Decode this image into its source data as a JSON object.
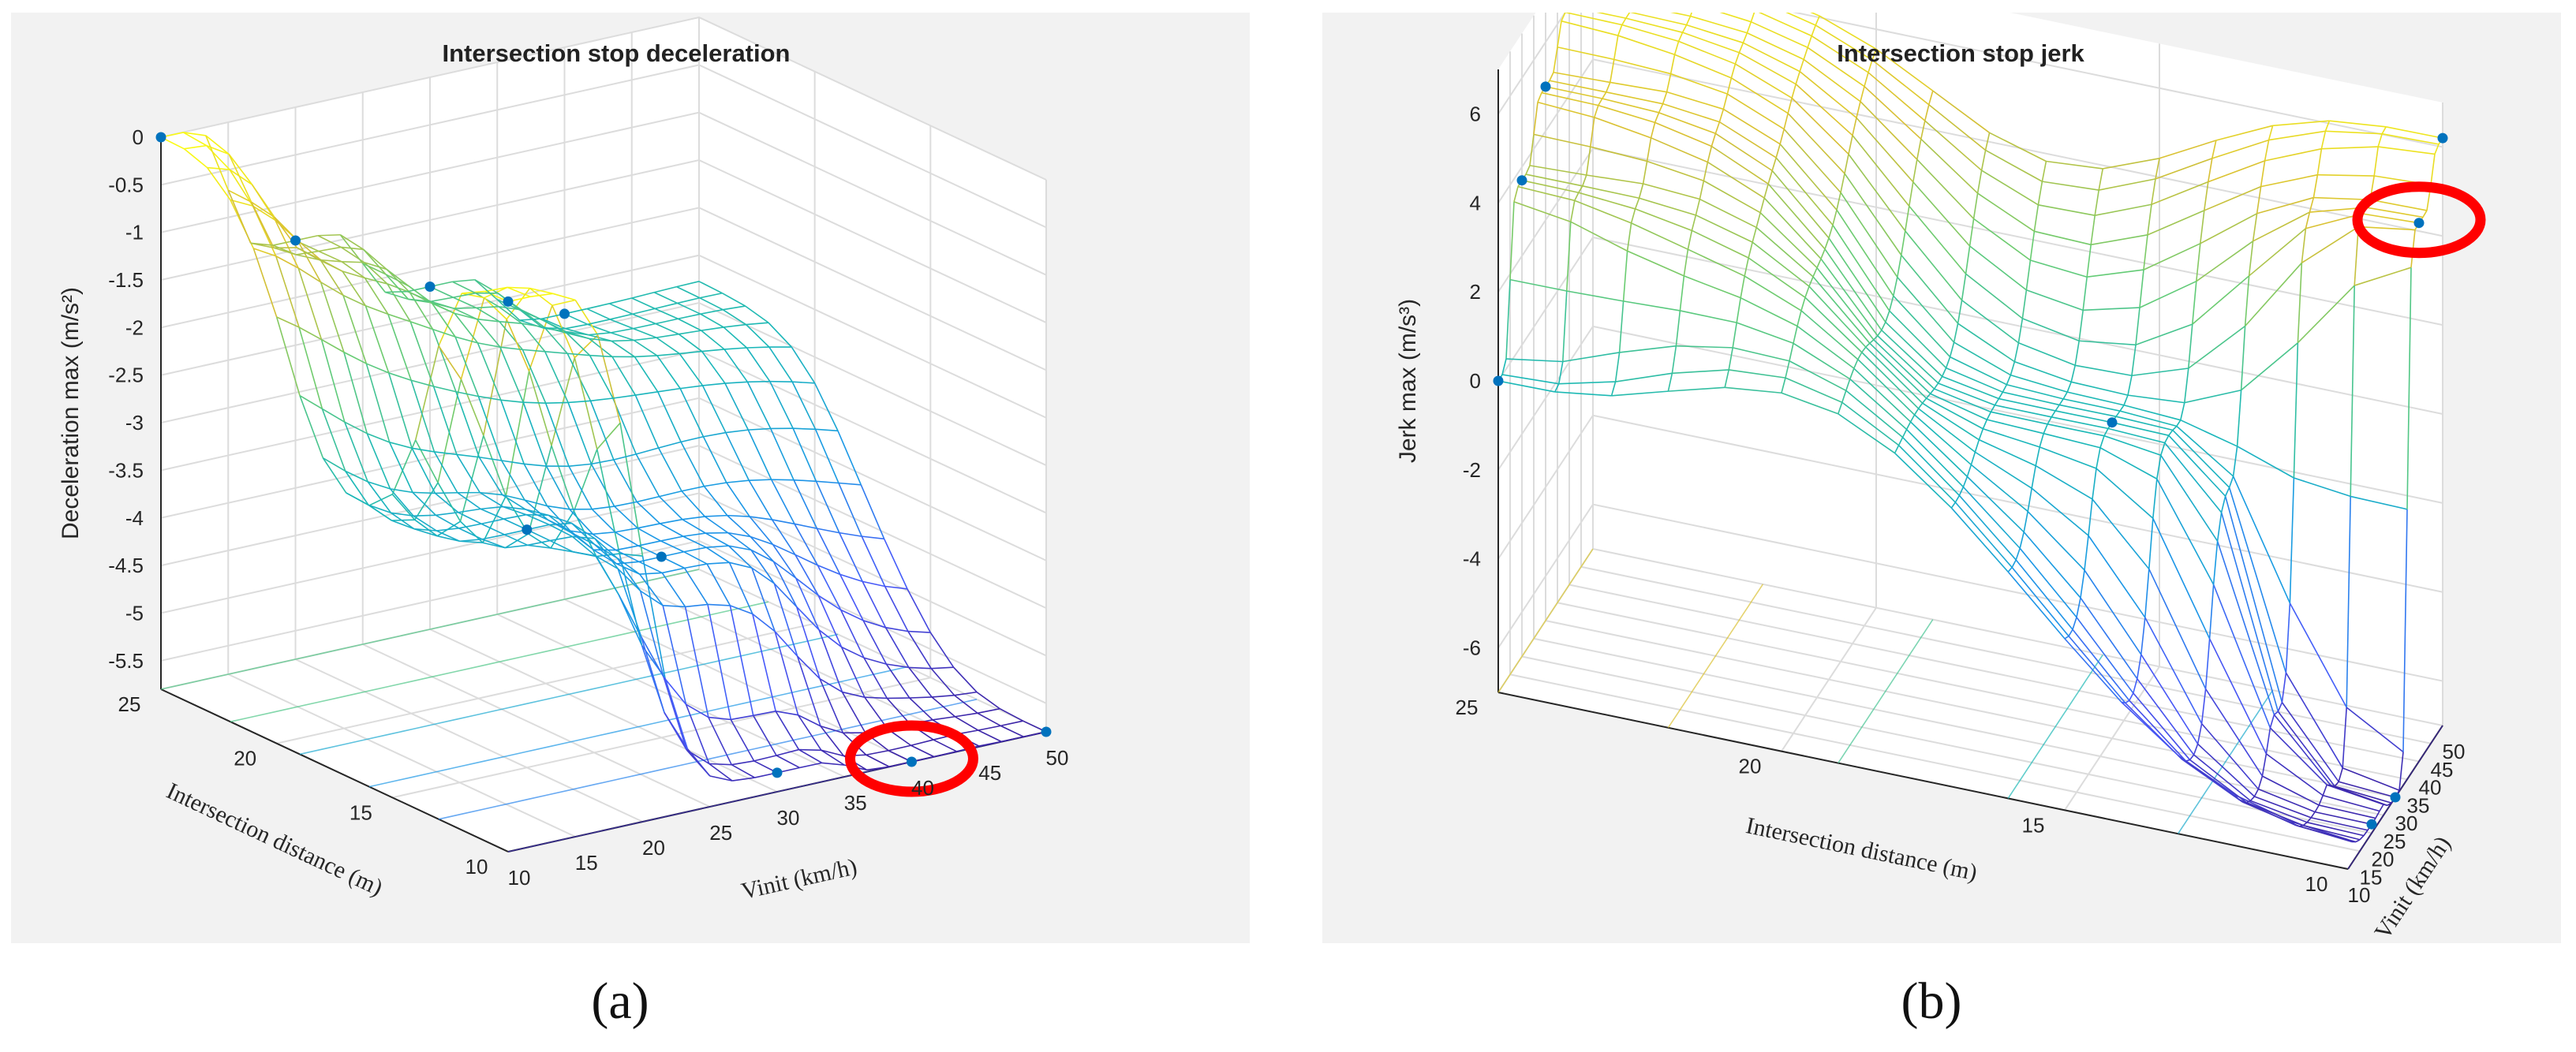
{
  "chart_data": [
    {
      "type": "surface",
      "panel_label": "(a)",
      "title": "Intersection stop deceleration",
      "xlabel": "Vinit (km/h)",
      "ylabel": "Intersection distance (m)",
      "zlabel": "Deceleration max (m/s²)",
      "xlim": [
        10,
        50
      ],
      "ylim": [
        10,
        25
      ],
      "zlim": [
        -5.8,
        0
      ],
      "x_ticks": [
        "10",
        "15",
        "20",
        "25",
        "30",
        "35",
        "40",
        "45",
        "50"
      ],
      "y_ticks": [
        "10",
        "15",
        "20",
        "25"
      ],
      "z_ticks": [
        "0",
        "-0.5",
        "-1",
        "-1.5",
        "-2",
        "-2.5",
        "-3",
        "-3.5",
        "-4",
        "-4.5",
        "-5",
        "-5.5"
      ],
      "grid": true,
      "colormap": "parula",
      "highlight_color": "#ff0000",
      "points": [
        {
          "x": 10,
          "y": 25,
          "z": 0
        },
        {
          "x": 10,
          "y": 10,
          "z": -0.02
        },
        {
          "x": 20,
          "y": 25,
          "z": -1.4
        },
        {
          "x": 30,
          "y": 25,
          "z": -2.2
        },
        {
          "x": 40,
          "y": 25,
          "z": -2.8
        },
        {
          "x": 20,
          "y": 15,
          "z": -3.3
        },
        {
          "x": 30,
          "y": 15,
          "z": -3.9
        },
        {
          "x": 30,
          "y": 10,
          "z": -5.6
        },
        {
          "x": 40,
          "y": 10,
          "z": -5.8
        },
        {
          "x": 50,
          "y": 10,
          "z": -5.8
        }
      ],
      "highlighted_point": {
        "x": 40,
        "y": 10,
        "z": -5.8
      }
    },
    {
      "type": "surface",
      "panel_label": "(b)",
      "title": "Intersection stop jerk",
      "xlabel": "Vinit (km/h)",
      "ylabel": "Intersection distance (m)",
      "zlabel": "Jerk max (m/s³)",
      "xlim": [
        10,
        50
      ],
      "ylim": [
        10,
        25
      ],
      "zlim": [
        -7,
        7
      ],
      "x_ticks": [
        "10",
        "15",
        "20",
        "25",
        "30",
        "35",
        "40",
        "45",
        "50"
      ],
      "y_ticks": [
        "10",
        "15",
        "20",
        "25"
      ],
      "z_ticks": [
        "6",
        "4",
        "2",
        "0",
        "-2",
        "-4",
        "-6"
      ],
      "grid": true,
      "colormap": "parula",
      "highlight_color": "#ff0000",
      "points": [
        {
          "x": 10,
          "y": 25,
          "z": 0
        },
        {
          "x": 20,
          "y": 25,
          "z": 3.7
        },
        {
          "x": 30,
          "y": 25,
          "z": 5
        },
        {
          "x": 40,
          "y": 25,
          "z": 6
        },
        {
          "x": 50,
          "y": 25,
          "z": 6.5
        },
        {
          "x": 50,
          "y": 10,
          "z": 6.2
        },
        {
          "x": 40,
          "y": 10,
          "z": 5.1
        },
        {
          "x": 30,
          "y": 15,
          "z": 0.1
        },
        {
          "x": 20,
          "y": 10,
          "z": -6.8
        },
        {
          "x": 30,
          "y": 10,
          "z": -7
        }
      ],
      "highlighted_point": {
        "x": 40,
        "y": 10,
        "z": 5.1
      }
    }
  ]
}
